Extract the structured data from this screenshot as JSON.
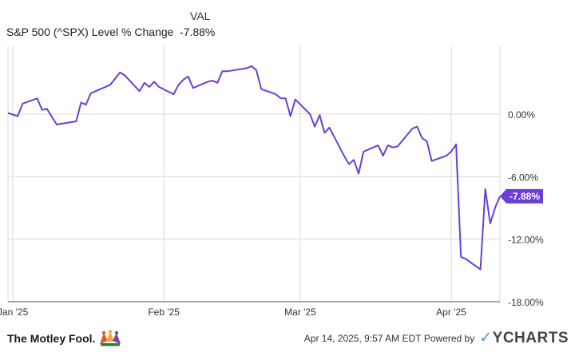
{
  "legend": {
    "header": "VAL",
    "series_label": "S&P 500 (^SPX) Level % Change",
    "series_value": "-7.88%"
  },
  "colors": {
    "line": "#6a3fd8",
    "grid": "#d9d9d9",
    "axis": "#555555"
  },
  "footer": {
    "brand": "The Motley Fool.",
    "timestamp": "Apr 14, 2025, 9:57 AM EDT",
    "powered": "Powered by",
    "logo": "YCHARTS"
  },
  "chart_data": {
    "type": "line",
    "ylim": [
      -18,
      6.5
    ],
    "yticks": [
      0,
      -6,
      -12,
      -18
    ],
    "ytick_labels": [
      "0.00%",
      "-6.00%",
      "-12.00%",
      "-18.00%"
    ],
    "xticks": [
      "2025-01-01",
      "2025-02-01",
      "2025-03-01",
      "2025-04-01"
    ],
    "xtick_labels": [
      "Jan '25",
      "Feb '25",
      "Mar '25",
      "Apr '25"
    ],
    "last_value_label": "-7.88%",
    "series": [
      {
        "points": [
          [
            "2024-12-31",
            0.1
          ],
          [
            "2025-01-02",
            -0.2
          ],
          [
            "2025-01-03",
            1.0
          ],
          [
            "2025-01-06",
            1.5
          ],
          [
            "2025-01-07",
            0.4
          ],
          [
            "2025-01-08",
            0.5
          ],
          [
            "2025-01-10",
            -1.0
          ],
          [
            "2025-01-14",
            -0.7
          ],
          [
            "2025-01-15",
            1.1
          ],
          [
            "2025-01-16",
            0.9
          ],
          [
            "2025-01-17",
            2.0
          ],
          [
            "2025-01-21",
            2.8
          ],
          [
            "2025-01-22",
            3.4
          ],
          [
            "2025-01-23",
            4.0
          ],
          [
            "2025-01-24",
            3.7
          ],
          [
            "2025-01-27",
            2.2
          ],
          [
            "2025-01-28",
            3.0
          ],
          [
            "2025-01-29",
            2.6
          ],
          [
            "2025-01-30",
            3.1
          ],
          [
            "2025-01-31",
            2.6
          ],
          [
            "2025-02-03",
            1.9
          ],
          [
            "2025-02-04",
            2.8
          ],
          [
            "2025-02-05",
            3.3
          ],
          [
            "2025-02-06",
            3.6
          ],
          [
            "2025-02-07",
            2.5
          ],
          [
            "2025-02-10",
            3.1
          ],
          [
            "2025-02-11",
            3.2
          ],
          [
            "2025-02-12",
            3.0
          ],
          [
            "2025-02-13",
            4.1
          ],
          [
            "2025-02-14",
            4.1
          ],
          [
            "2025-02-18",
            4.4
          ],
          [
            "2025-02-19",
            4.6
          ],
          [
            "2025-02-20",
            4.2
          ],
          [
            "2025-02-21",
            2.4
          ],
          [
            "2025-02-24",
            1.9
          ],
          [
            "2025-02-25",
            1.5
          ],
          [
            "2025-02-26",
            1.5
          ],
          [
            "2025-02-27",
            -0.2
          ],
          [
            "2025-02-28",
            1.4
          ],
          [
            "2025-03-03",
            0.0
          ],
          [
            "2025-03-04",
            -1.2
          ],
          [
            "2025-03-05",
            -0.1
          ],
          [
            "2025-03-06",
            -1.8
          ],
          [
            "2025-03-07",
            -1.3
          ],
          [
            "2025-03-10",
            -4.0
          ],
          [
            "2025-03-11",
            -4.8
          ],
          [
            "2025-03-12",
            -4.4
          ],
          [
            "2025-03-13",
            -5.7
          ],
          [
            "2025-03-14",
            -3.6
          ],
          [
            "2025-03-17",
            -3.0
          ],
          [
            "2025-03-18",
            -4.0
          ],
          [
            "2025-03-19",
            -3.0
          ],
          [
            "2025-03-20",
            -3.2
          ],
          [
            "2025-03-21",
            -3.1
          ],
          [
            "2025-03-24",
            -1.4
          ],
          [
            "2025-03-25",
            -1.2
          ],
          [
            "2025-03-26",
            -2.3
          ],
          [
            "2025-03-27",
            -2.6
          ],
          [
            "2025-03-28",
            -4.5
          ],
          [
            "2025-03-31",
            -4.0
          ],
          [
            "2025-04-01",
            -3.6
          ],
          [
            "2025-04-02",
            -2.9
          ],
          [
            "2025-04-03",
            -13.7
          ],
          [
            "2025-04-04",
            -13.9
          ],
          [
            "2025-04-07",
            -14.9
          ],
          [
            "2025-04-08",
            -7.2
          ],
          [
            "2025-04-09",
            -10.5
          ],
          [
            "2025-04-10",
            -9.0
          ],
          [
            "2025-04-11",
            -7.88
          ]
        ]
      }
    ]
  }
}
